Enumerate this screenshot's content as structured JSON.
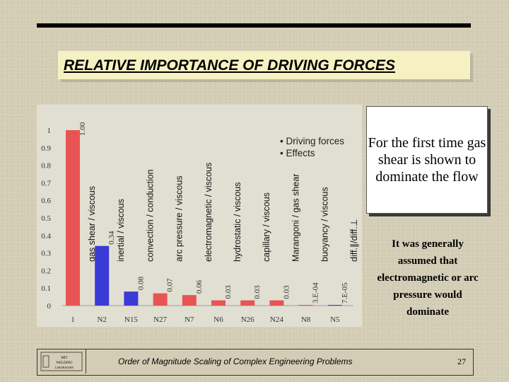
{
  "slide": {
    "title": "RELATIVE IMPORTANCE OF DRIVING FORCES",
    "callout": "For the first time gas shear is shown to dominate the flow",
    "side_note": "It was generally assumed that electromagnetic or arc pressure would dominate",
    "footer": "Order of Magnitude Scaling of Complex Engineering Problems",
    "page_number": "27",
    "logo_lines": [
      "MIT",
      "WELDING",
      "LABORATORY"
    ]
  },
  "chart_data": {
    "type": "bar",
    "ylim": [
      0,
      1
    ],
    "yticks": [
      "0",
      "0.1",
      "0.2",
      "0.3",
      "0.4",
      "0.5",
      "0.6",
      "0.7",
      "0.8",
      "0.9",
      "1"
    ],
    "legend": [
      "• Driving forces",
      "• Effects"
    ],
    "bars": [
      {
        "category": "1",
        "value": 1.0,
        "value_label": "1.00",
        "label": "gas shear / viscous",
        "kind": "driving",
        "color": "#e85454"
      },
      {
        "category": "N2",
        "value": 0.34,
        "value_label": "0.34",
        "label": "inertial / viscous",
        "kind": "effect",
        "color": "#3a3ad6"
      },
      {
        "category": "N15",
        "value": 0.08,
        "value_label": "0.08",
        "label": "convection / conduction",
        "kind": "effect",
        "color": "#3a3ad6"
      },
      {
        "category": "N27",
        "value": 0.07,
        "value_label": "0.07",
        "label": "arc pressure / viscous",
        "kind": "driving",
        "color": "#e85454"
      },
      {
        "category": "N7",
        "value": 0.06,
        "value_label": "0.06",
        "label": "electromagnetic / viscous",
        "kind": "driving",
        "color": "#e85454"
      },
      {
        "category": "N6",
        "value": 0.03,
        "value_label": "0.03",
        "label": "hydrostatic / viscous",
        "kind": "driving",
        "color": "#e85454"
      },
      {
        "category": "N26",
        "value": 0.03,
        "value_label": "0.03",
        "label": "capillary / viscous",
        "kind": "driving",
        "color": "#e85454"
      },
      {
        "category": "N24",
        "value": 0.03,
        "value_label": "0.03",
        "label": "Marangoni / gas shear",
        "kind": "driving",
        "color": "#e85454"
      },
      {
        "category": "N8",
        "value": 0.0003,
        "value_label": "3.E-04",
        "label": "buoyancy / viscous",
        "kind": "driving",
        "color": "#e85454"
      },
      {
        "category": "N5",
        "value": 7e-05,
        "value_label": "7.E-05",
        "label": "diff.∥/diff.⊥",
        "kind": "effect",
        "color": "#3a3ad6"
      }
    ]
  }
}
